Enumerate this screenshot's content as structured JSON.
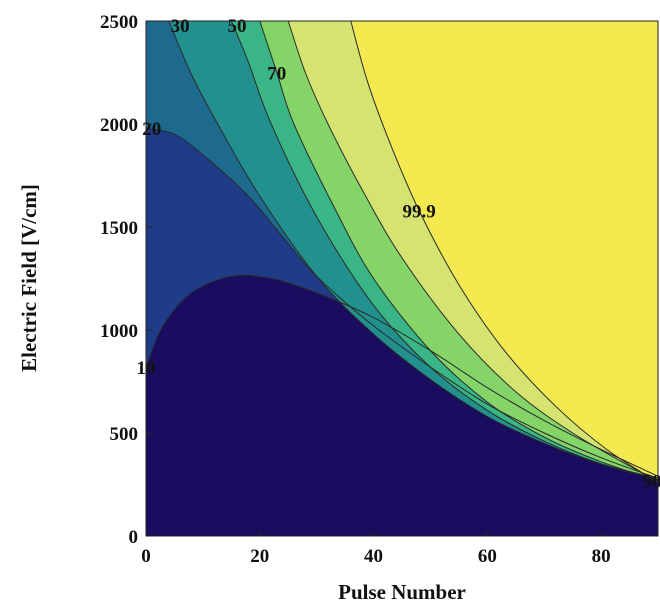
{
  "chart_data": {
    "type": "contour",
    "xlabel": "Pulse Number",
    "ylabel": "Electric Field [V/cm]",
    "xlim": [
      0,
      90
    ],
    "ylim": [
      0,
      2500
    ],
    "x_ticks": [
      "0",
      "20",
      "40",
      "60",
      "80"
    ],
    "y_ticks": [
      "0",
      "500",
      "1000",
      "1500",
      "2000",
      "2500"
    ],
    "colors": {
      "level_0": "#1a0c5e",
      "level_10": "#1e3c87",
      "level_20": "#1d6a8e",
      "level_30": "#22918d",
      "level_50": "#3ab585",
      "level_70": "#85d468",
      "level_90": "#d5e470",
      "level_99_9": "#f4ea4f",
      "contour_line": "#2a2a2a"
    },
    "contours": [
      {
        "label": "10",
        "label_pos": [
          0,
          820
        ],
        "points": [
          [
            0,
            820
          ],
          [
            3,
            1020
          ],
          [
            8,
            1180
          ],
          [
            15,
            1260
          ],
          [
            22,
            1250
          ],
          [
            30,
            1180
          ],
          [
            40,
            1060
          ],
          [
            50,
            900
          ],
          [
            60,
            720
          ],
          [
            70,
            560
          ],
          [
            80,
            420
          ],
          [
            90,
            290
          ]
        ]
      },
      {
        "label": "20",
        "label_pos": [
          1,
          1980
        ],
        "points": [
          [
            0,
            1980
          ],
          [
            5,
            1950
          ],
          [
            10,
            1850
          ],
          [
            18,
            1650
          ],
          [
            25,
            1420
          ],
          [
            30,
            1260
          ],
          [
            40,
            1020
          ],
          [
            50,
            820
          ],
          [
            60,
            640
          ],
          [
            70,
            500
          ],
          [
            80,
            380
          ],
          [
            90,
            280
          ]
        ]
      },
      {
        "label": "30",
        "label_pos": [
          6,
          2480
        ],
        "points": [
          [
            4,
            2500
          ],
          [
            8,
            2240
          ],
          [
            13,
            1980
          ],
          [
            20,
            1650
          ],
          [
            30,
            1260
          ],
          [
            40,
            980
          ],
          [
            50,
            760
          ],
          [
            60,
            580
          ],
          [
            70,
            450
          ],
          [
            80,
            350
          ],
          [
            90,
            280
          ]
        ]
      },
      {
        "label": "50",
        "label_pos": [
          16,
          2480
        ],
        "points": [
          [
            15,
            2500
          ],
          [
            18,
            2300
          ],
          [
            22,
            2000
          ],
          [
            30,
            1550
          ],
          [
            40,
            1120
          ],
          [
            50,
            820
          ],
          [
            60,
            610
          ],
          [
            70,
            460
          ],
          [
            80,
            350
          ],
          [
            90,
            275
          ]
        ]
      },
      {
        "label": "70",
        "label_pos": [
          23,
          2250
        ],
        "points": [
          [
            20,
            2500
          ],
          [
            23,
            2250
          ],
          [
            26,
            2000
          ],
          [
            33,
            1600
          ],
          [
            40,
            1250
          ],
          [
            50,
            900
          ],
          [
            60,
            650
          ],
          [
            70,
            480
          ],
          [
            80,
            360
          ],
          [
            90,
            270
          ]
        ]
      },
      {
        "label": "90",
        "label_pos": [
          89,
          270
        ],
        "points": [
          [
            25,
            2500
          ],
          [
            28,
            2250
          ],
          [
            32,
            2000
          ],
          [
            38,
            1680
          ],
          [
            45,
            1350
          ],
          [
            55,
            980
          ],
          [
            65,
            700
          ],
          [
            75,
            500
          ],
          [
            85,
            340
          ],
          [
            90,
            265
          ]
        ]
      },
      {
        "label": "99.9",
        "label_pos": [
          48,
          1580
        ],
        "points": [
          [
            36,
            2500
          ],
          [
            39,
            2200
          ],
          [
            43,
            1900
          ],
          [
            48,
            1580
          ],
          [
            55,
            1220
          ],
          [
            63,
            900
          ],
          [
            72,
            630
          ],
          [
            81,
            420
          ],
          [
            90,
            260
          ]
        ]
      }
    ]
  }
}
